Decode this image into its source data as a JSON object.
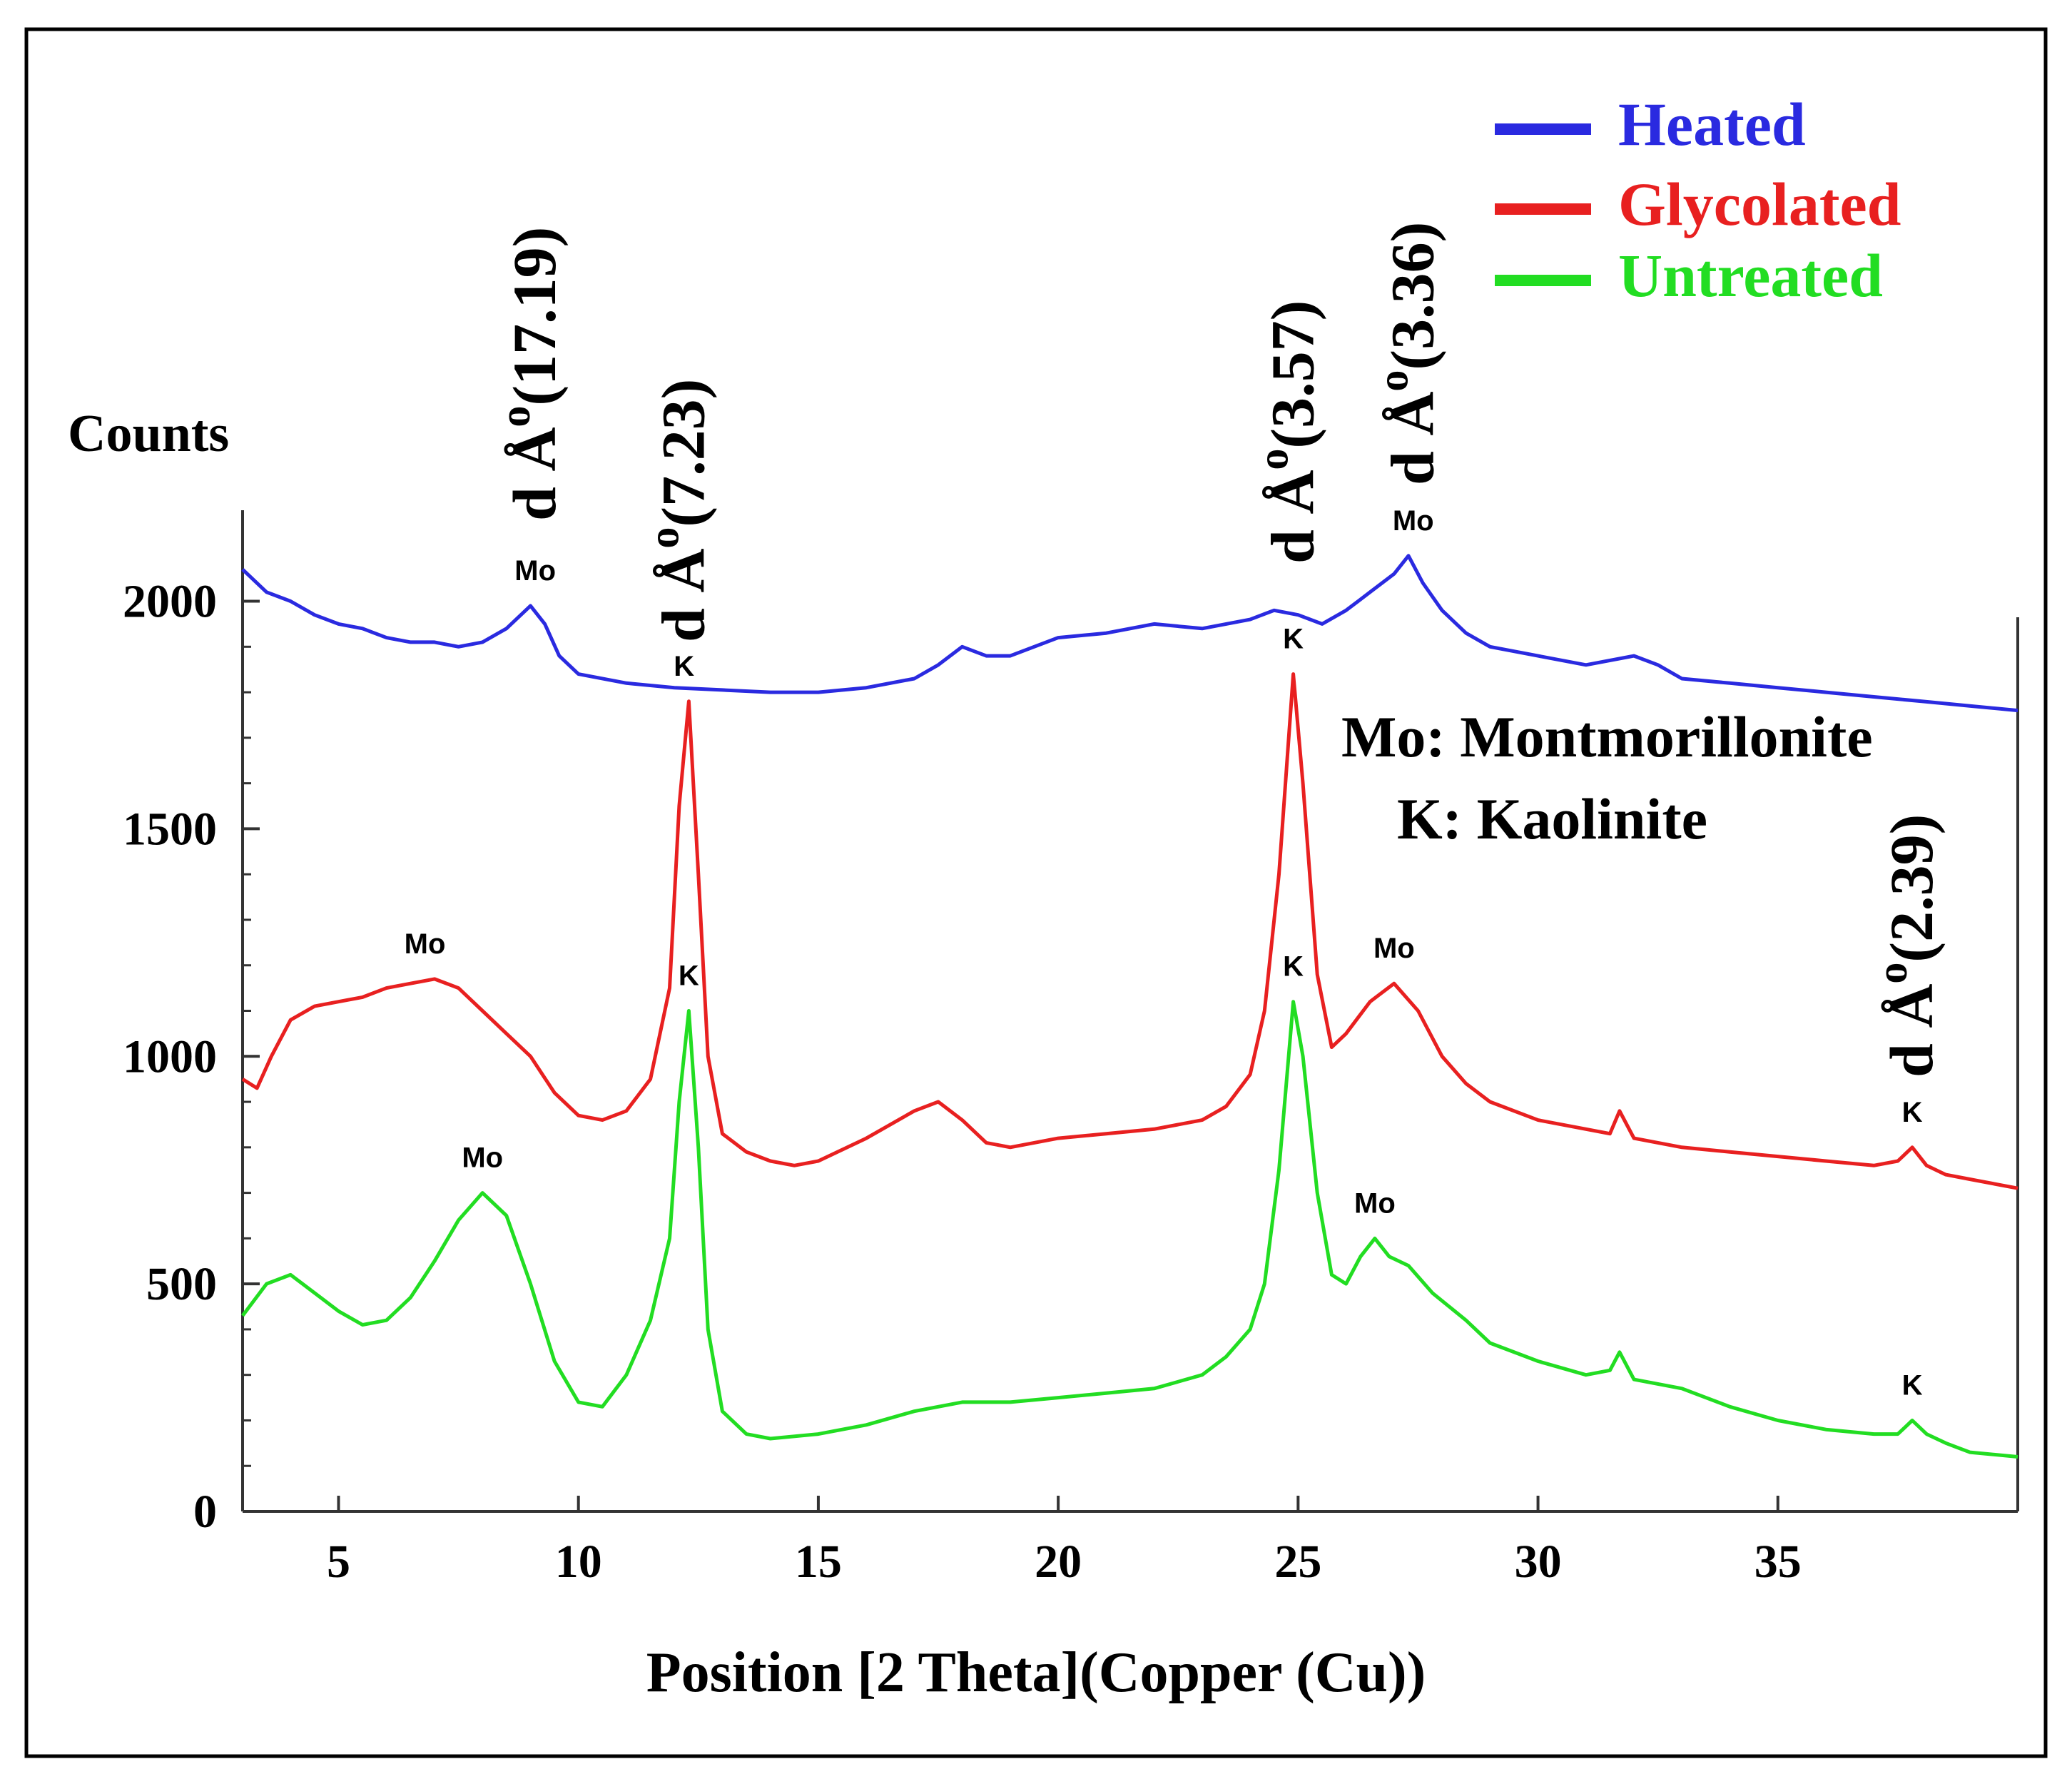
{
  "chart_data": {
    "type": "line",
    "title": "",
    "xlabel": "Position [2 Theta](Copper (Cu))",
    "ylabel": "Counts",
    "xlim": [
      3,
      40
    ],
    "ylim": [
      0,
      2200
    ],
    "x_ticks": [
      5,
      10,
      15,
      20,
      25,
      30,
      35
    ],
    "y_ticks": [
      0,
      500,
      1000,
      1500,
      2000
    ],
    "legend": {
      "placement": "top-right",
      "entries": [
        "Heated",
        "Glycolated",
        "Untreated"
      ]
    },
    "legend_key": {
      "line1": "Mo: Montmorillonite",
      "line2": "K: Kaolinite"
    },
    "series": [
      {
        "name": "Heated",
        "color": "#2a2ae0",
        "x": [
          3,
          3.5,
          4,
          4.5,
          5,
          5.5,
          6,
          6.5,
          7,
          7.5,
          8,
          8.5,
          9,
          9.3,
          9.6,
          10,
          11,
          12,
          13,
          14,
          15,
          16,
          17,
          17.5,
          18,
          18.5,
          19,
          20,
          21,
          22,
          23,
          24,
          24.5,
          25,
          25.5,
          26,
          26.5,
          27,
          27.3,
          27.6,
          28,
          28.5,
          29,
          30,
          31,
          32,
          32.5,
          33,
          34,
          35,
          36,
          37,
          38,
          39,
          40
        ],
        "values": [
          2070,
          2020,
          2000,
          1970,
          1950,
          1940,
          1920,
          1910,
          1910,
          1900,
          1910,
          1940,
          1990,
          1950,
          1880,
          1840,
          1820,
          1810,
          1805,
          1800,
          1800,
          1810,
          1830,
          1860,
          1900,
          1880,
          1880,
          1920,
          1930,
          1950,
          1940,
          1960,
          1980,
          1970,
          1950,
          1980,
          2020,
          2060,
          2100,
          2040,
          1980,
          1930,
          1900,
          1880,
          1860,
          1880,
          1860,
          1830,
          1820,
          1810,
          1800,
          1790,
          1780,
          1770,
          1760
        ]
      },
      {
        "name": "Glycolated",
        "color": "#e82020",
        "x": [
          3,
          3.3,
          3.6,
          4,
          4.5,
          5,
          5.5,
          6,
          6.5,
          7,
          7.5,
          8,
          8.5,
          9,
          9.5,
          10,
          10.5,
          11,
          11.5,
          11.9,
          12.1,
          12.3,
          12.5,
          12.7,
          13,
          13.5,
          14,
          14.5,
          15,
          16,
          17,
          17.5,
          18,
          18.5,
          19,
          20,
          21,
          22,
          23,
          23.5,
          24,
          24.3,
          24.6,
          24.9,
          25.1,
          25.4,
          25.7,
          26,
          26.5,
          27,
          27.5,
          28,
          28.5,
          29,
          30,
          31,
          31.5,
          31.7,
          32,
          33,
          34,
          35,
          36,
          37,
          37.5,
          37.8,
          38.1,
          38.5,
          39,
          40
        ],
        "values": [
          950,
          930,
          1000,
          1080,
          1110,
          1120,
          1130,
          1150,
          1160,
          1170,
          1150,
          1100,
          1050,
          1000,
          920,
          870,
          860,
          880,
          950,
          1150,
          1550,
          1780,
          1400,
          1000,
          830,
          790,
          770,
          760,
          770,
          820,
          880,
          900,
          860,
          810,
          800,
          820,
          830,
          840,
          860,
          890,
          960,
          1100,
          1400,
          1840,
          1600,
          1180,
          1020,
          1050,
          1120,
          1160,
          1100,
          1000,
          940,
          900,
          860,
          840,
          830,
          880,
          820,
          800,
          790,
          780,
          770,
          760,
          770,
          800,
          760,
          740,
          730,
          710
        ]
      },
      {
        "name": "Untreated",
        "color": "#22dd22",
        "x": [
          3,
          3.5,
          4,
          4.5,
          5,
          5.5,
          6,
          6.5,
          7,
          7.5,
          8,
          8.5,
          9,
          9.5,
          10,
          10.5,
          11,
          11.5,
          11.9,
          12.1,
          12.3,
          12.5,
          12.7,
          13,
          13.5,
          14,
          15,
          16,
          17,
          18,
          19,
          20,
          21,
          22,
          23,
          23.5,
          24,
          24.3,
          24.6,
          24.9,
          25.1,
          25.4,
          25.7,
          26,
          26.3,
          26.6,
          26.9,
          27.3,
          27.8,
          28.5,
          29,
          30,
          31,
          31.5,
          31.7,
          32,
          33,
          34,
          35,
          36,
          37,
          37.5,
          37.8,
          38.1,
          38.5,
          39,
          40
        ],
        "values": [
          430,
          500,
          520,
          480,
          440,
          410,
          420,
          470,
          550,
          640,
          700,
          650,
          500,
          330,
          240,
          230,
          300,
          420,
          600,
          900,
          1100,
          800,
          400,
          220,
          170,
          160,
          170,
          190,
          220,
          240,
          240,
          250,
          260,
          270,
          300,
          340,
          400,
          500,
          750,
          1120,
          1000,
          700,
          520,
          500,
          560,
          600,
          560,
          540,
          480,
          420,
          370,
          330,
          300,
          310,
          350,
          290,
          270,
          230,
          200,
          180,
          170,
          170,
          200,
          170,
          150,
          130,
          120
        ]
      }
    ],
    "annotations": [
      {
        "text": "Mo",
        "series": "Heated",
        "x": 9.1,
        "y": 1990
      },
      {
        "text": "Mo",
        "series": "Heated",
        "x": 27.4,
        "y": 2100
      },
      {
        "text": "K",
        "series": "Glycolated",
        "x": 12.2,
        "y": 1780
      },
      {
        "text": "Mo",
        "series": "Glycolated",
        "x": 6.8,
        "y": 1170
      },
      {
        "text": "K",
        "series": "Glycolated",
        "x": 24.9,
        "y": 1840
      },
      {
        "text": "Mo",
        "series": "Glycolated",
        "x": 27.0,
        "y": 1160
      },
      {
        "text": "K",
        "series": "Glycolated",
        "x": 37.8,
        "y": 800
      },
      {
        "text": "K",
        "series": "Untreated",
        "x": 12.3,
        "y": 1100
      },
      {
        "text": "Mo",
        "series": "Untreated",
        "x": 8.0,
        "y": 700
      },
      {
        "text": "K",
        "series": "Untreated",
        "x": 24.9,
        "y": 1120
      },
      {
        "text": "Mo",
        "series": "Untreated",
        "x": 26.6,
        "y": 600
      },
      {
        "text": "K",
        "series": "Untreated",
        "x": 37.8,
        "y": 200
      }
    ],
    "d_spacing_labels": [
      {
        "prefix": "d Å",
        "sup": "o",
        "value": "(17.19)",
        "x": 9.1
      },
      {
        "prefix": "d Å",
        "sup": "o",
        "value": "(7.23)",
        "x": 12.2
      },
      {
        "prefix": "d Å",
        "sup": "o",
        "value": "(3.57)",
        "x": 24.9
      },
      {
        "prefix": "d Å",
        "sup": "o",
        "value": "(3.36)",
        "x": 27.4
      },
      {
        "prefix": "d Å",
        "sup": "o",
        "value": "(2.39)",
        "x": 37.8
      }
    ]
  }
}
